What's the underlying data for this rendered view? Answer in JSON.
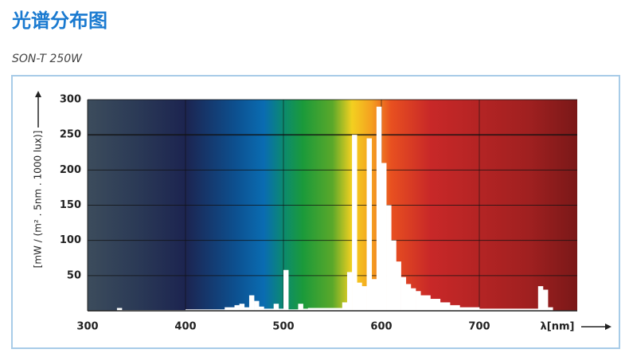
{
  "title": "光谱分布图",
  "subtitle": "SON-T 250W",
  "chart_data": {
    "type": "histogram",
    "y_label": "[mW / (m² . 5nm . 1000 lux)]",
    "x_label": "λ[nm]",
    "bins": [
      300,
      330,
      335,
      340,
      400,
      440,
      450,
      455,
      460,
      465,
      470,
      475,
      480,
      490,
      495,
      500,
      505,
      515,
      520,
      525,
      560,
      565,
      570,
      575,
      580,
      585,
      590,
      595,
      600,
      605,
      610,
      615,
      620,
      625,
      630,
      635,
      640,
      650,
      660,
      670,
      680,
      700,
      760,
      765,
      770,
      775,
      800
    ],
    "values": [
      0,
      4,
      1,
      1,
      2,
      5,
      8,
      10,
      5,
      22,
      14,
      6,
      3,
      10,
      3,
      58,
      2,
      10,
      3,
      4,
      12,
      55,
      250,
      40,
      35,
      245,
      45,
      290,
      210,
      150,
      100,
      70,
      48,
      38,
      32,
      28,
      22,
      17,
      12,
      8,
      5,
      3,
      35,
      30,
      5,
      0
    ],
    "color": "#ffffff",
    "xlim": [
      300,
      800
    ],
    "ylim": [
      0,
      300
    ],
    "xticks": [
      300,
      400,
      500,
      600,
      700
    ],
    "yticks": [
      50,
      100,
      150,
      200,
      250,
      300
    ],
    "grid": true
  }
}
